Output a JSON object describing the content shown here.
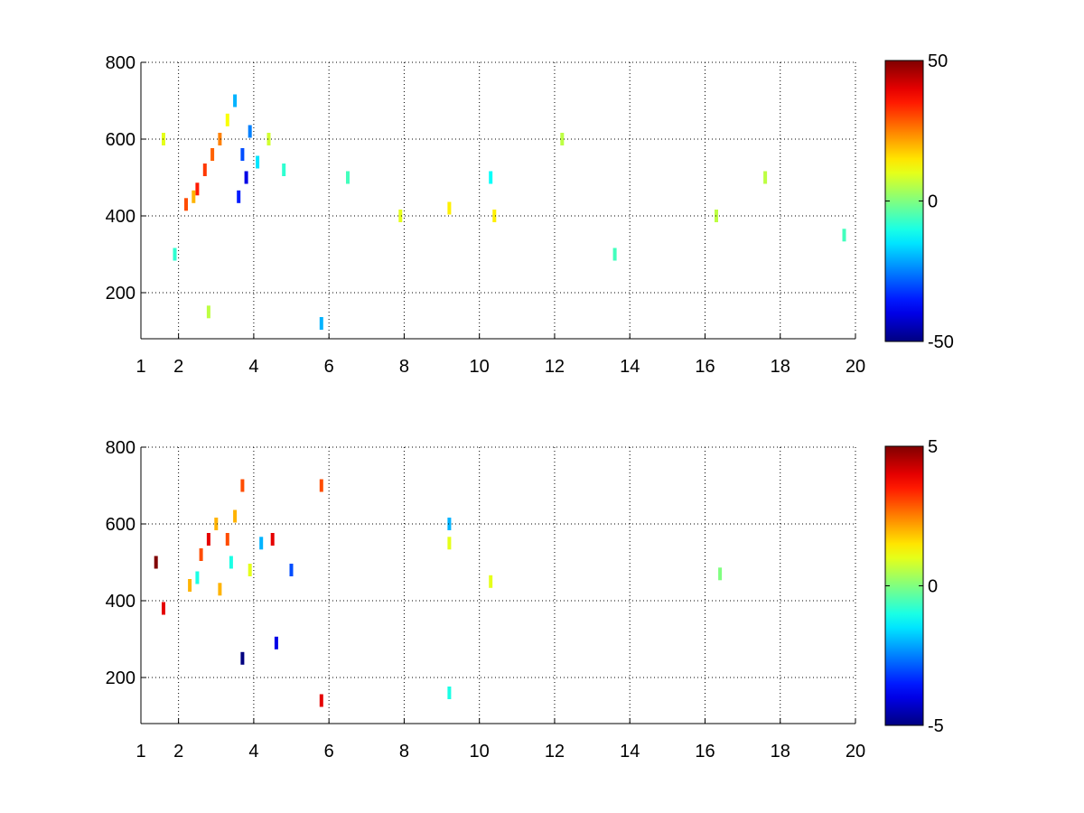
{
  "chart_data": [
    {
      "type": "heatmap",
      "title": "",
      "xlabel": "",
      "ylabel": "",
      "xlim": [
        1,
        20
      ],
      "ylim": [
        80,
        800
      ],
      "xticks": [
        1,
        2,
        4,
        6,
        8,
        10,
        12,
        14,
        16,
        18,
        20
      ],
      "yticks": [
        200,
        400,
        600,
        800
      ],
      "grid": true,
      "colormap": "jet",
      "colorbar": {
        "min": -50,
        "max": 50,
        "ticks": [
          50,
          0,
          -50
        ]
      },
      "cells": [
        {
          "x": 2.2,
          "y": 430,
          "value": 30
        },
        {
          "x": 2.5,
          "y": 470,
          "value": 35
        },
        {
          "x": 2.7,
          "y": 520,
          "value": 32
        },
        {
          "x": 2.9,
          "y": 560,
          "value": 28
        },
        {
          "x": 3.1,
          "y": 600,
          "value": 25
        },
        {
          "x": 2.4,
          "y": 450,
          "value": 20
        },
        {
          "x": 3.6,
          "y": 450,
          "value": -35
        },
        {
          "x": 3.8,
          "y": 500,
          "value": -40
        },
        {
          "x": 3.7,
          "y": 560,
          "value": -30
        },
        {
          "x": 3.9,
          "y": 620,
          "value": -25
        },
        {
          "x": 3.5,
          "y": 700,
          "value": -20
        },
        {
          "x": 4.1,
          "y": 540,
          "value": -15
        },
        {
          "x": 3.3,
          "y": 650,
          "value": 12
        },
        {
          "x": 4.4,
          "y": 600,
          "value": 8
        },
        {
          "x": 4.8,
          "y": 520,
          "value": -8
        },
        {
          "x": 1.6,
          "y": 600,
          "value": 10
        },
        {
          "x": 1.9,
          "y": 300,
          "value": -8
        },
        {
          "x": 2.8,
          "y": 150,
          "value": 6
        },
        {
          "x": 5.8,
          "y": 120,
          "value": -20
        },
        {
          "x": 6.5,
          "y": 500,
          "value": -6
        },
        {
          "x": 7.9,
          "y": 400,
          "value": 10
        },
        {
          "x": 9.2,
          "y": 420,
          "value": 14
        },
        {
          "x": 10.4,
          "y": 400,
          "value": 14
        },
        {
          "x": 10.3,
          "y": 500,
          "value": -12
        },
        {
          "x": 12.2,
          "y": 600,
          "value": 6
        },
        {
          "x": 13.6,
          "y": 300,
          "value": -6
        },
        {
          "x": 16.3,
          "y": 400,
          "value": 6
        },
        {
          "x": 17.6,
          "y": 500,
          "value": 6
        },
        {
          "x": 19.7,
          "y": 350,
          "value": -6
        }
      ]
    },
    {
      "type": "heatmap",
      "title": "",
      "xlabel": "",
      "ylabel": "",
      "xlim": [
        1,
        20
      ],
      "ylim": [
        80,
        800
      ],
      "xticks": [
        1,
        2,
        4,
        6,
        8,
        10,
        12,
        14,
        16,
        18,
        20
      ],
      "yticks": [
        200,
        400,
        600,
        800
      ],
      "grid": true,
      "colormap": "jet",
      "colorbar": {
        "min": -5,
        "max": 5,
        "ticks": [
          5,
          0,
          -5
        ]
      },
      "cells": [
        {
          "x": 2.6,
          "y": 520,
          "value": 3
        },
        {
          "x": 2.8,
          "y": 560,
          "value": 4
        },
        {
          "x": 3.0,
          "y": 600,
          "value": 2
        },
        {
          "x": 3.3,
          "y": 560,
          "value": 3
        },
        {
          "x": 3.5,
          "y": 620,
          "value": 2
        },
        {
          "x": 3.7,
          "y": 700,
          "value": 3
        },
        {
          "x": 3.4,
          "y": 500,
          "value": -1
        },
        {
          "x": 3.9,
          "y": 480,
          "value": 1
        },
        {
          "x": 4.2,
          "y": 550,
          "value": -2
        },
        {
          "x": 2.3,
          "y": 440,
          "value": 2
        },
        {
          "x": 2.5,
          "y": 460,
          "value": -1
        },
        {
          "x": 3.1,
          "y": 430,
          "value": 2
        },
        {
          "x": 4.5,
          "y": 560,
          "value": 4
        },
        {
          "x": 5.0,
          "y": 480,
          "value": -3
        },
        {
          "x": 4.6,
          "y": 290,
          "value": -4
        },
        {
          "x": 1.4,
          "y": 500,
          "value": 5
        },
        {
          "x": 1.6,
          "y": 380,
          "value": 4
        },
        {
          "x": 3.7,
          "y": 250,
          "value": -5
        },
        {
          "x": 5.8,
          "y": 700,
          "value": 3
        },
        {
          "x": 5.8,
          "y": 140,
          "value": 4
        },
        {
          "x": 9.2,
          "y": 600,
          "value": -2
        },
        {
          "x": 9.2,
          "y": 550,
          "value": 1
        },
        {
          "x": 9.2,
          "y": 160,
          "value": -1
        },
        {
          "x": 10.3,
          "y": 450,
          "value": 1
        },
        {
          "x": 16.4,
          "y": 470,
          "value": 0
        }
      ]
    }
  ]
}
